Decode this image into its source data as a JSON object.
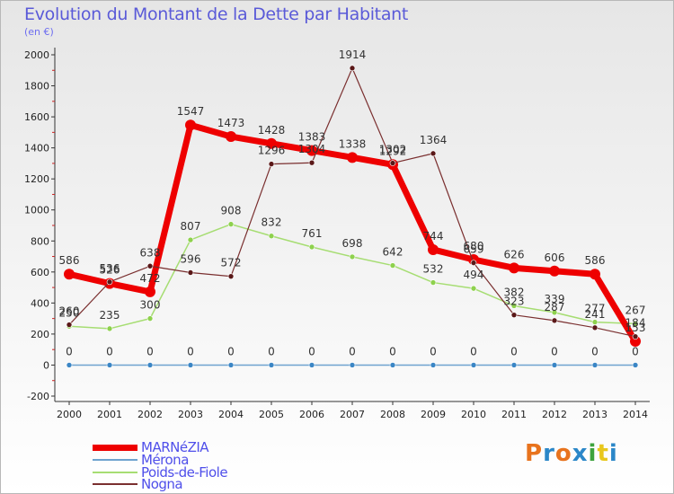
{
  "title": "Evolution du Montant de la Dette par Habitant",
  "subtitle": "(en €)",
  "logo": {
    "text": "Proxiti",
    "colors": [
      "#e8731d",
      "#2b87c8",
      "#e8731d",
      "#2b87c8",
      "#3da33d",
      "#e8c71d",
      "#2b87c8"
    ]
  },
  "chart_data": {
    "type": "line",
    "title": "Evolution du Montant de la Dette par Habitant",
    "ylabel": "(en €)",
    "xlabel": "",
    "ylim": [
      -200,
      2000
    ],
    "yticks": [
      -200,
      0,
      200,
      400,
      600,
      800,
      1000,
      1200,
      1400,
      1600,
      1800,
      2000
    ],
    "categories": [
      "2000",
      "2001",
      "2002",
      "2003",
      "2004",
      "2005",
      "2006",
      "2007",
      "2008",
      "2009",
      "2010",
      "2011",
      "2012",
      "2013",
      "2014"
    ],
    "grid": false,
    "legend_position": "bottom-left",
    "series": [
      {
        "name": "MARNéZIA",
        "color": "#ee0000",
        "marker": "#ee0000",
        "width": 7,
        "radius": 6,
        "values": [
          586,
          526,
          472,
          1547,
          1473,
          1428,
          1383,
          1338,
          1292,
          744,
          680,
          626,
          606,
          586,
          153
        ]
      },
      {
        "name": "Mérona",
        "color": "#6ea3cf",
        "marker": "#3b86c5",
        "width": 1.5,
        "radius": 3,
        "values": [
          0,
          0,
          0,
          0,
          0,
          0,
          0,
          0,
          0,
          0,
          0,
          0,
          0,
          0,
          0
        ]
      },
      {
        "name": "Poids-de-Fiole",
        "color": "#a6dd72",
        "marker": "#8ed14d",
        "width": 1.5,
        "radius": 3,
        "values": [
          250,
          235,
          300,
          807,
          908,
          832,
          761,
          698,
          642,
          532,
          494,
          382,
          339,
          277,
          267
        ]
      },
      {
        "name": "Nogna",
        "color": "#7a2f2f",
        "marker": "#5a1818",
        "width": 1.2,
        "radius": 3,
        "values": [
          260,
          536,
          638,
          596,
          572,
          1296,
          1304,
          1914,
          1302,
          1364,
          659,
          323,
          287,
          241,
          184
        ]
      }
    ]
  }
}
